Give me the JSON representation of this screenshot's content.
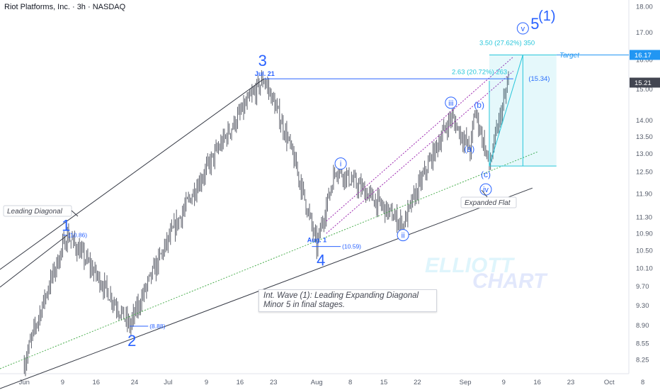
{
  "header": {
    "title": "Riot Platforms, Inc. · 3h · NASDAQ"
  },
  "price_axis": {
    "ticks": [
      "18.00",
      "17.00",
      "16.00",
      "15.00",
      "14.00",
      "13.50",
      "13.00",
      "12.50",
      "11.90",
      "11.30",
      "10.90",
      "10.50",
      "10.10",
      "9.70",
      "9.30",
      "8.90",
      "8.55",
      "8.25"
    ],
    "target_tag": "16.17",
    "last_tag": "15.21",
    "target_color": "#2196f3",
    "last_color": "#434651"
  },
  "time_axis": {
    "ticks": [
      "Jun",
      "9",
      "16",
      "24",
      "Jul",
      "9",
      "16",
      "23",
      "Aug",
      "8",
      "15",
      "22",
      "Sep",
      "9",
      "16",
      "23",
      "Oct",
      "8"
    ]
  },
  "chart_data": {
    "type": "candlestick",
    "title": "Riot Platforms, Inc. · 3h · NASDAQ",
    "ylabel": "",
    "xlabel": "",
    "ylim": [
      8.1,
      18.2
    ],
    "price_scale": "log",
    "x_range": [
      "2024-05-31",
      "2024-10-10"
    ],
    "candle_color": "#5d606b",
    "key_points": [
      {
        "date": "2024-06-01",
        "price": 8.18
      },
      {
        "date": "2024-06-10",
        "price": 10.86
      },
      {
        "date": "2024-06-23",
        "price": 8.88
      },
      {
        "date": "2024-07-21",
        "price": 15.34
      },
      {
        "date": "2024-07-26",
        "price": 13.4
      },
      {
        "date": "2024-08-01",
        "price": 10.59
      },
      {
        "date": "2024-08-05",
        "price": 12.6
      },
      {
        "date": "2024-08-19",
        "price": 11.1
      },
      {
        "date": "2024-08-29",
        "price": 14.1
      },
      {
        "date": "2024-09-02",
        "price": 13.1
      },
      {
        "date": "2024-09-03",
        "price": 14.3
      },
      {
        "date": "2024-09-06",
        "price": 12.65
      },
      {
        "date": "2024-09-10",
        "price": 15.21
      }
    ],
    "wave_labels": [
      {
        "text": "1",
        "date": "2024-06-10",
        "price": 10.86
      },
      {
        "text": "2",
        "date": "2024-06-23",
        "price": 8.88
      },
      {
        "text": "3",
        "date": "2024-07-21",
        "price": 15.34
      },
      {
        "text": "4",
        "date": "2024-08-01",
        "price": 10.59
      },
      {
        "text": "5",
        "date": "2024-09-13",
        "price": 16.17
      },
      {
        "text": "(1)",
        "date": "2024-09-13",
        "price": 16.17
      },
      {
        "text": "i",
        "date": "2024-08-05",
        "price": 12.6
      },
      {
        "text": "ii",
        "date": "2024-08-19",
        "price": 11.1
      },
      {
        "text": "iii",
        "date": "2024-08-29",
        "price": 14.1
      },
      {
        "text": "iv",
        "date": "2024-09-06",
        "price": 12.65
      },
      {
        "text": "v",
        "date": "2024-09-13",
        "price": 16.17
      },
      {
        "text": "(a)",
        "date": "2024-09-02",
        "price": 13.1
      },
      {
        "text": "(b)",
        "date": "2024-09-03",
        "price": 14.3
      },
      {
        "text": "(c)",
        "date": "2024-09-06",
        "price": 12.65
      }
    ],
    "annotations": {
      "leading_diagonal": "Leading Diagonal",
      "expanded_flat": "Expanded Flat",
      "target": "Target",
      "jul21": "Jul. 21",
      "aug1": "Aug. 1",
      "low_1_label": "(10.86)",
      "low_2_label": "(8.88)",
      "low_4_label": "(10.59)",
      "w3_label": "(15.34)",
      "fib_upper": "3.50 (27.62%) 350",
      "fib_lower": "2.63 (20.72%) 263",
      "note_line1": "Int. Wave (1): Leading Expanding Diagonal",
      "note_line2": "Minor 5 in final stages.",
      "watermark_1": "ELLIOTT",
      "watermark_2": "CHART"
    },
    "levels": {
      "wave3_high": 15.34,
      "target": 16.17,
      "box_low": 12.65,
      "last": 15.21
    },
    "colors": {
      "wave": "#2962ff",
      "target": "#26c6da",
      "channel": "#9c27b0",
      "trend": "#4caf50",
      "lines": "#363a45"
    }
  }
}
